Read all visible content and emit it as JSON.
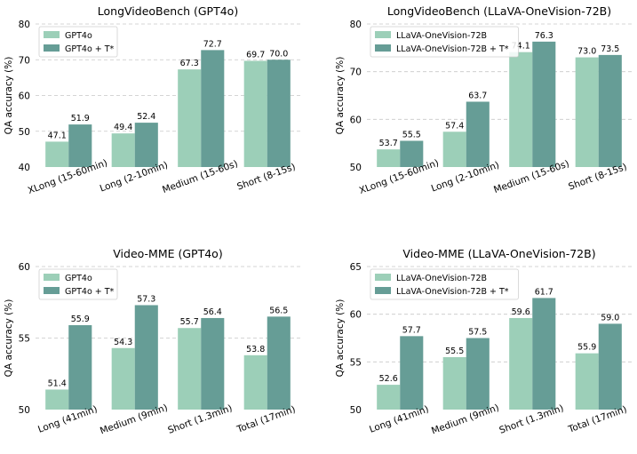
{
  "colors": {
    "base": "#9ccfb8",
    "plus": "#669d96",
    "grid": "#c8c8c8"
  },
  "chart_data": [
    {
      "type": "bar",
      "title": "LongVideoBench (GPT4o)",
      "ylabel": "QA accuracy (%)",
      "ylim": [
        40,
        80
      ],
      "yticks": [
        "40",
        "50",
        "60",
        "70",
        "80"
      ],
      "categories": [
        "XLong (15-60min)",
        "Long (2-10min)",
        "Medium (15-60s)",
        "Short (8-15s)"
      ],
      "series": [
        {
          "name": "GPT4o",
          "values": [
            47.1,
            49.4,
            67.3,
            69.7
          ],
          "labels": [
            "47.1",
            "49.4",
            "67.3",
            "69.7"
          ]
        },
        {
          "name": "GPT4o + T*",
          "values": [
            51.9,
            52.4,
            72.7,
            70.0
          ],
          "labels": [
            "51.9",
            "52.4",
            "72.7",
            "70.0"
          ]
        }
      ],
      "grid": true,
      "legend": "top-left"
    },
    {
      "type": "bar",
      "title": "LongVideoBench (LLaVA-OneVision-72B)",
      "ylabel": "QA accuracy (%)",
      "ylim": [
        50,
        80
      ],
      "yticks": [
        "50",
        "60",
        "70",
        "80"
      ],
      "categories": [
        "XLong (15-60min)",
        "Long (2-10min)",
        "Medium (15-60s)",
        "Short (8-15s)"
      ],
      "series": [
        {
          "name": "LLaVA-OneVision-72B",
          "values": [
            53.7,
            57.4,
            74.1,
            73.0
          ],
          "labels": [
            "53.7",
            "57.4",
            "74.1",
            "73.0"
          ]
        },
        {
          "name": "LLaVA-OneVision-72B + T*",
          "values": [
            55.5,
            63.7,
            76.3,
            73.5
          ],
          "labels": [
            "55.5",
            "63.7",
            "76.3",
            "73.5"
          ]
        }
      ],
      "grid": true,
      "legend": "top-left"
    },
    {
      "type": "bar",
      "title": "Video-MME (GPT4o)",
      "ylabel": "QA accuracy (%)",
      "ylim": [
        50,
        60
      ],
      "yticks": [
        "50",
        "55",
        "60"
      ],
      "categories": [
        "Long (41min)",
        "Medium (9min)",
        "Short (1.3min)",
        "Total (17min)"
      ],
      "series": [
        {
          "name": "GPT4o",
          "values": [
            51.4,
            54.3,
            55.7,
            53.8
          ],
          "labels": [
            "51.4",
            "54.3",
            "55.7",
            "53.8"
          ]
        },
        {
          "name": "GPT4o + T*",
          "values": [
            55.9,
            57.3,
            56.4,
            56.5
          ],
          "labels": [
            "55.9",
            "57.3",
            "56.4",
            "56.5"
          ]
        }
      ],
      "grid": true,
      "legend": "top-left"
    },
    {
      "type": "bar",
      "title": "Video-MME (LLaVA-OneVision-72B)",
      "ylabel": "QA accuracy (%)",
      "ylim": [
        50,
        65
      ],
      "yticks": [
        "50",
        "55",
        "60",
        "65"
      ],
      "categories": [
        "Long (41min)",
        "Medium (9min)",
        "Short (1.3min)",
        "Total (17min)"
      ],
      "series": [
        {
          "name": "LLaVA-OneVision-72B",
          "values": [
            52.6,
            55.5,
            59.6,
            55.9
          ],
          "labels": [
            "52.6",
            "55.5",
            "59.6",
            "55.9"
          ]
        },
        {
          "name": "LLaVA-OneVision-72B + T*",
          "values": [
            57.7,
            57.5,
            61.7,
            59.0
          ],
          "labels": [
            "57.7",
            "57.5",
            "61.7",
            "59.0"
          ]
        }
      ],
      "grid": true,
      "legend": "top-left"
    }
  ]
}
